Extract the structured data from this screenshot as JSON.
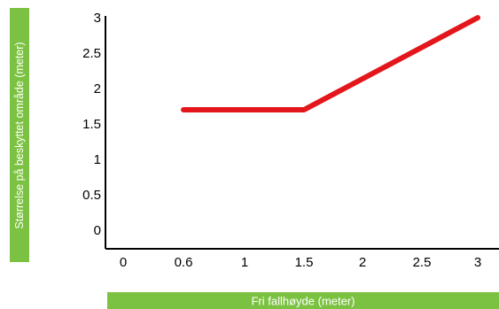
{
  "chart_data": {
    "type": "line",
    "xlabel": "Fri fallhøyde (meter)",
    "ylabel": "Størrelse på beskyttet område (meter)",
    "x_ticks": [
      "0",
      "0.6",
      "1",
      "1.5",
      "2",
      "2.5",
      "3"
    ],
    "y_ticks": [
      "0",
      "0.5",
      "1",
      "1.5",
      "2",
      "2.5",
      "3"
    ],
    "ylim": [
      0,
      3
    ],
    "grid": false,
    "series": [
      {
        "color": "#e3161b",
        "points": [
          {
            "x": 0.6,
            "y": 1.7
          },
          {
            "x": 1.5,
            "y": 1.7
          },
          {
            "x": 3.0,
            "y": 3.0
          }
        ]
      }
    ]
  }
}
